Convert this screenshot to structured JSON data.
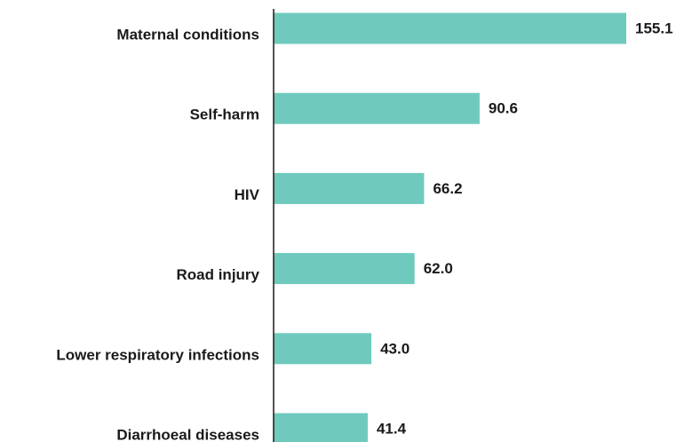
{
  "chart_data": {
    "type": "bar",
    "orientation": "horizontal",
    "categories": [
      "Maternal conditions",
      "Self-harm",
      "HIV",
      "Road injury",
      "Lower respiratory infections",
      "Diarrhoeal diseases"
    ],
    "values": [
      155.1,
      90.6,
      66.2,
      62.0,
      43.0,
      41.4
    ],
    "value_labels": [
      "155.1",
      "90.6",
      "66.2",
      "62.0",
      "43.0",
      "41.4"
    ],
    "color": "#6fcabd"
  }
}
